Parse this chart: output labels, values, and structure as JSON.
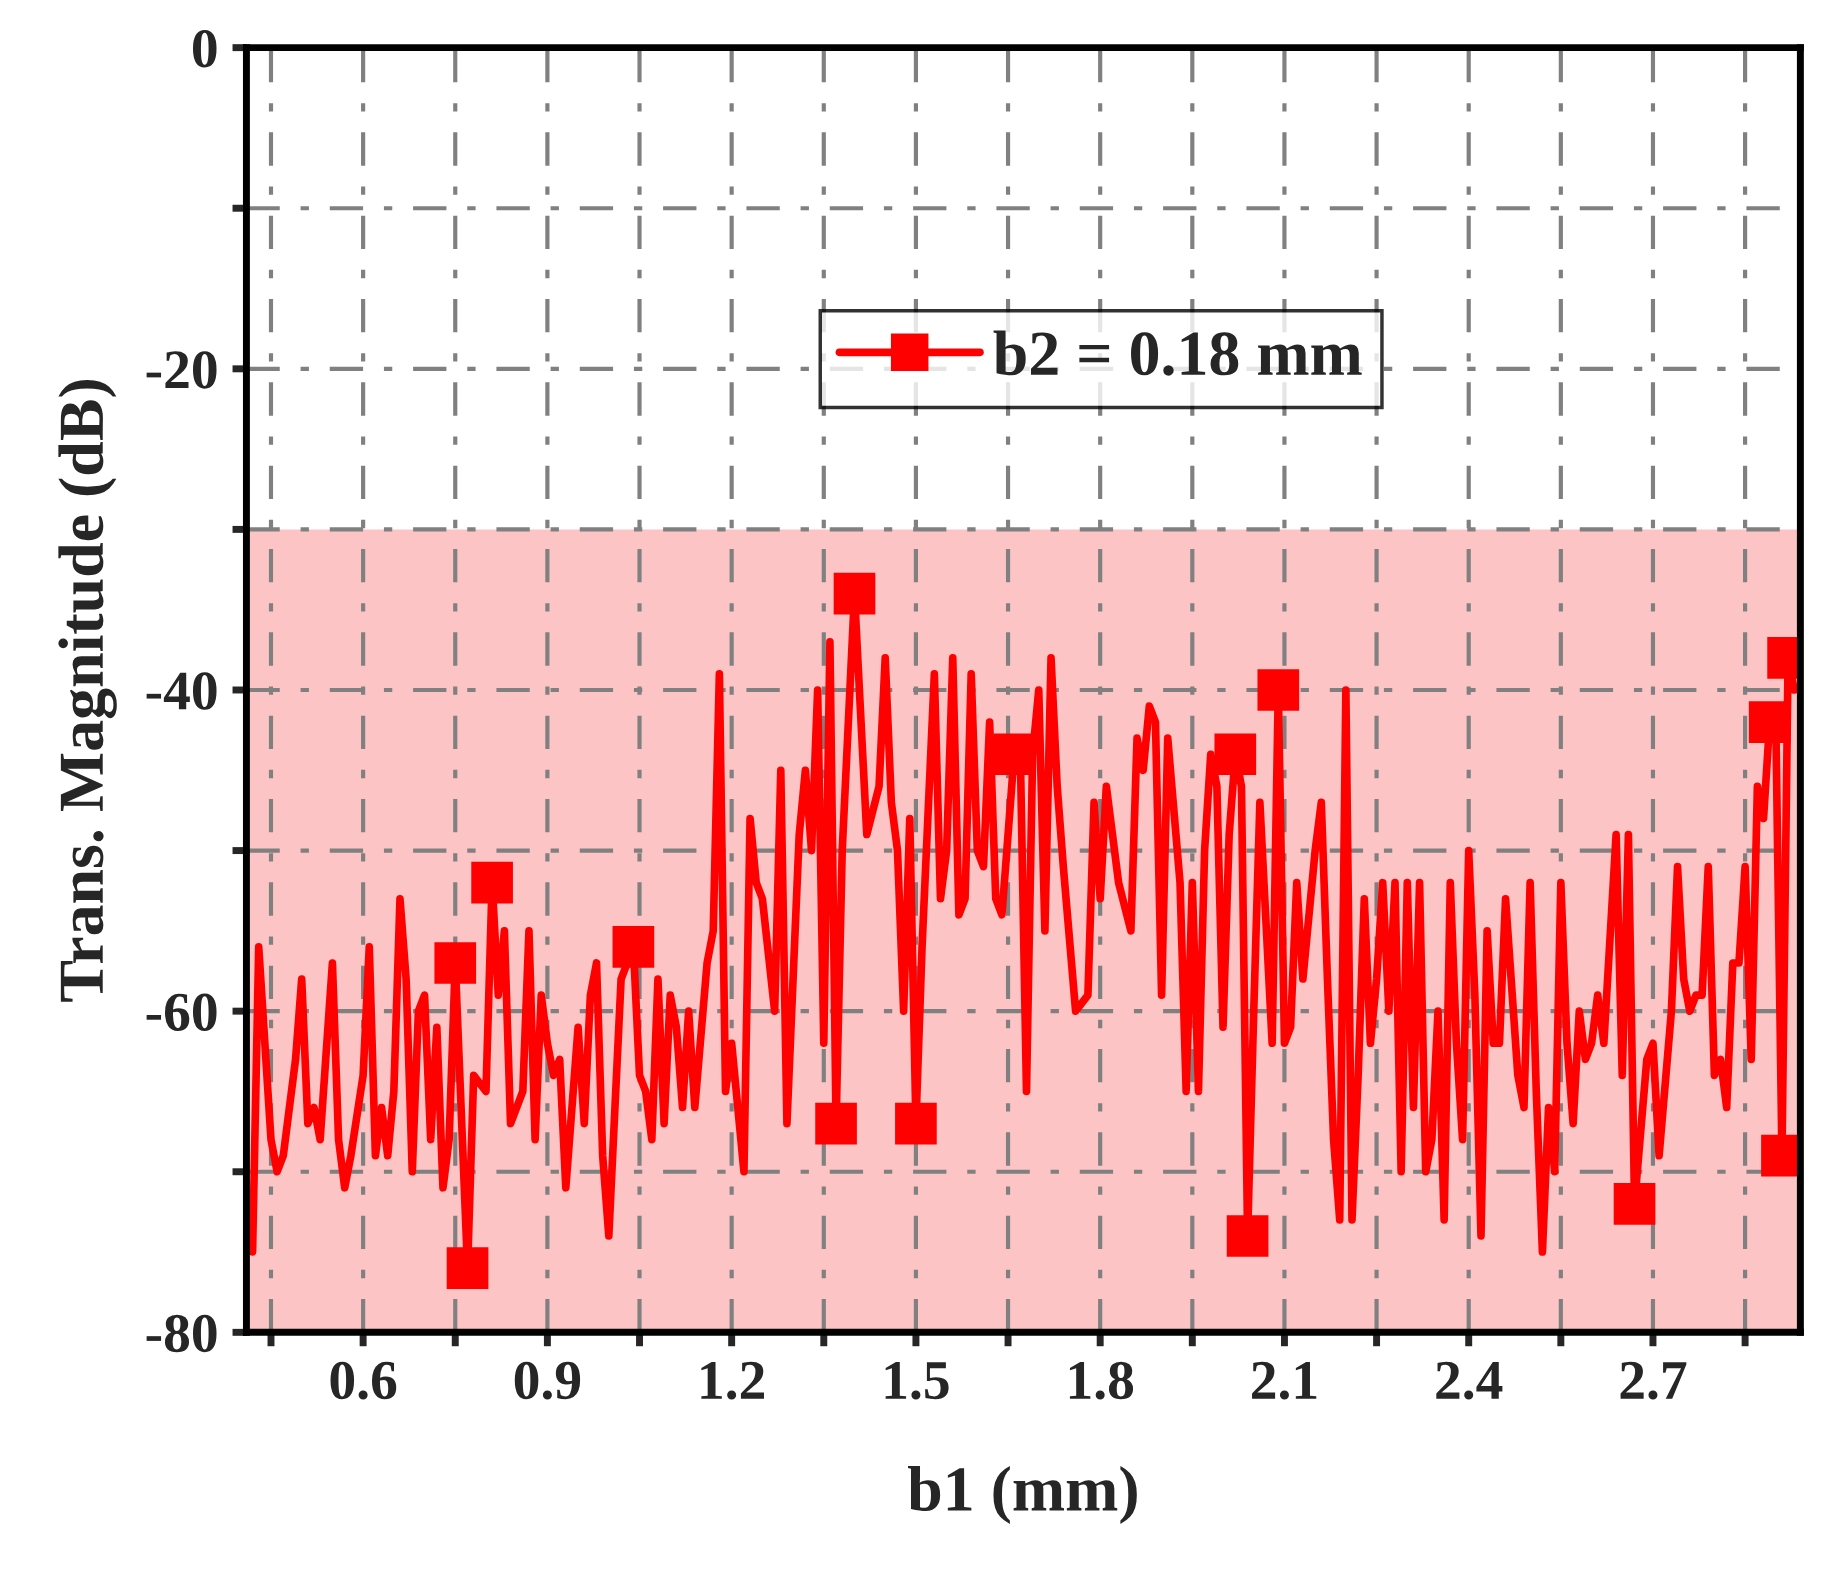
{
  "chart_data": {
    "type": "line",
    "xlabel": "b1 (mm)",
    "ylabel": "Trans. Magnitude (dB)",
    "xlim": [
      0.41,
      2.94
    ],
    "ylim": [
      -80,
      0
    ],
    "xticks": [
      {
        "value": 0.45,
        "label": null
      },
      0.6,
      {
        "value": 0.75,
        "label": null
      },
      0.9,
      {
        "value": 1.05,
        "label": null
      },
      1.2,
      {
        "value": 1.35,
        "label": null
      },
      1.5,
      {
        "value": 1.65,
        "label": null
      },
      1.8,
      {
        "value": 1.95,
        "label": null
      },
      2.1,
      {
        "value": 2.25,
        "label": null
      },
      2.4,
      {
        "value": 2.55,
        "label": null
      },
      2.7,
      {
        "value": 2.85,
        "label": null
      }
    ],
    "yticks": [
      -80,
      {
        "value": -70,
        "label": null
      },
      -60,
      {
        "value": -50,
        "label": null
      },
      -40,
      {
        "value": -30,
        "label": null
      },
      -20,
      {
        "value": -10,
        "label": null
      },
      0
    ],
    "grid": true,
    "legend": "top",
    "line_style": "solid",
    "bands": [
      {
        "axis": "y",
        "from": -80,
        "to": -30,
        "color": "#fcc4c4"
      }
    ],
    "series": [
      {
        "name": "b2 = 0.18 mm",
        "color": "#ff0000",
        "x": [
          0.42,
          0.43,
          0.45,
          0.46,
          0.47,
          0.49,
          0.5,
          0.51,
          0.52,
          0.53,
          0.55,
          0.56,
          0.57,
          0.58,
          0.6,
          0.61,
          0.62,
          0.63,
          0.64,
          0.65,
          0.66,
          0.67,
          0.68,
          0.69,
          0.7,
          0.71,
          0.72,
          0.73,
          0.74,
          0.75,
          0.77,
          0.78,
          0.8,
          0.81,
          0.82,
          0.83,
          0.84,
          0.86,
          0.87,
          0.88,
          0.89,
          0.9,
          0.91,
          0.92,
          0.93,
          0.94,
          0.95,
          0.96,
          0.97,
          0.98,
          0.99,
          1.0,
          1.02,
          1.04,
          1.05,
          1.06,
          1.07,
          1.08,
          1.09,
          1.1,
          1.11,
          1.12,
          1.13,
          1.14,
          1.16,
          1.17,
          1.18,
          1.19,
          1.2,
          1.22,
          1.23,
          1.24,
          1.25,
          1.27,
          1.28,
          1.29,
          1.31,
          1.32,
          1.33,
          1.34,
          1.35,
          1.36,
          1.37,
          1.38,
          1.4,
          1.42,
          1.44,
          1.45,
          1.46,
          1.47,
          1.48,
          1.49,
          1.5,
          1.51,
          1.53,
          1.54,
          1.55,
          1.56,
          1.57,
          1.58,
          1.59,
          1.6,
          1.61,
          1.62,
          1.63,
          1.64,
          1.66,
          1.67,
          1.68,
          1.69,
          1.7,
          1.71,
          1.72,
          1.73,
          1.74,
          1.76,
          1.78,
          1.79,
          1.8,
          1.81,
          1.83,
          1.85,
          1.86,
          1.87,
          1.88,
          1.89,
          1.9,
          1.91,
          1.93,
          1.94,
          1.95,
          1.96,
          1.97,
          1.98,
          1.99,
          2.0,
          2.01,
          2.02,
          2.03,
          2.04,
          2.05,
          2.06,
          2.08,
          2.09,
          2.1,
          2.11,
          2.12,
          2.13,
          2.15,
          2.16,
          2.17,
          2.18,
          2.19,
          2.2,
          2.21,
          2.22,
          2.23,
          2.24,
          2.25,
          2.26,
          2.27,
          2.28,
          2.29,
          2.3,
          2.31,
          2.32,
          2.33,
          2.34,
          2.35,
          2.36,
          2.37,
          2.38,
          2.39,
          2.4,
          2.41,
          2.42,
          2.43,
          2.44,
          2.45,
          2.46,
          2.48,
          2.49,
          2.5,
          2.51,
          2.52,
          2.53,
          2.54,
          2.55,
          2.56,
          2.57,
          2.58,
          2.59,
          2.6,
          2.61,
          2.62,
          2.64,
          2.65,
          2.66,
          2.67,
          2.69,
          2.7,
          2.71,
          2.73,
          2.74,
          2.75,
          2.76,
          2.77,
          2.78,
          2.79,
          2.8,
          2.81,
          2.82,
          2.83,
          2.84,
          2.85,
          2.86,
          2.87,
          2.88,
          2.89,
          2.9,
          2.91,
          2.92,
          2.93
        ],
        "values": [
          -75,
          -56,
          -68,
          -70,
          -69,
          -63,
          -58,
          -67,
          -66,
          -68,
          -57,
          -68,
          -71,
          -69,
          -64,
          -56,
          -69,
          -66,
          -69,
          -65,
          -53,
          -58,
          -70,
          -60,
          -59,
          -68,
          -61,
          -71,
          -68,
          -57,
          -76,
          -64,
          -65,
          -52,
          -59,
          -55,
          -67,
          -65,
          -55,
          -68,
          -59,
          -62,
          -64,
          -63,
          -71,
          -66,
          -61,
          -67,
          -59,
          -57,
          -69,
          -74,
          -58,
          -56,
          -64,
          -65,
          -68,
          -58,
          -67,
          -59,
          -61,
          -66,
          -60,
          -66,
          -57,
          -55,
          -39,
          -65,
          -62,
          -70,
          -48,
          -52,
          -53,
          -60,
          -45,
          -67,
          -49,
          -45,
          -50,
          -40,
          -62,
          -37,
          -67,
          -50,
          -34,
          -49,
          -46,
          -38,
          -47,
          -50,
          -60,
          -48,
          -67,
          -56,
          -39,
          -53,
          -50,
          -38,
          -54,
          -53,
          -39,
          -50,
          -51,
          -42,
          -53,
          -54,
          -44,
          -44,
          -65,
          -44,
          -40,
          -55,
          -38,
          -46,
          -51,
          -60,
          -59,
          -47,
          -53,
          -46,
          -52,
          -55,
          -43,
          -45,
          -41,
          -42,
          -59,
          -43,
          -52,
          -65,
          -52,
          -65,
          -50,
          -44,
          -46,
          -61,
          -49,
          -44,
          -46,
          -74,
          -60,
          -47,
          -62,
          -40,
          -62,
          -61,
          -52,
          -58,
          -50,
          -47,
          -58,
          -68,
          -73,
          -40,
          -73,
          -64,
          -53,
          -62,
          -58,
          -52,
          -60,
          -52,
          -70,
          -52,
          -66,
          -52,
          -70,
          -68,
          -60,
          -73,
          -52,
          -62,
          -68,
          -50,
          -59,
          -74,
          -55,
          -62,
          -62,
          -53,
          -64,
          -66,
          -52,
          -65,
          -75,
          -66,
          -70,
          -52,
          -62,
          -67,
          -60,
          -63,
          -62,
          -59,
          -62,
          -49,
          -64,
          -49,
          -72,
          -63,
          -62,
          -69,
          -60,
          -51,
          -58,
          -60,
          -59,
          -59,
          -51,
          -64,
          -63,
          -66,
          -57,
          -57,
          -51,
          -63,
          -46,
          -48,
          -42,
          -42,
          -69,
          -38,
          -40
        ]
      },
      {
        "type": "scatter",
        "color": "#ff0000",
        "marker": "square",
        "x": [
          0.75,
          0.77,
          0.81,
          1.04,
          1.37,
          1.4,
          1.5,
          1.66,
          2.02,
          2.04,
          2.09,
          2.67,
          2.89,
          2.91,
          2.92
        ],
        "values": [
          -57,
          -76,
          -52,
          -56,
          -67,
          -34,
          -67,
          -44,
          -44,
          -74,
          -40,
          -72,
          -42,
          -69,
          -38
        ]
      }
    ]
  }
}
